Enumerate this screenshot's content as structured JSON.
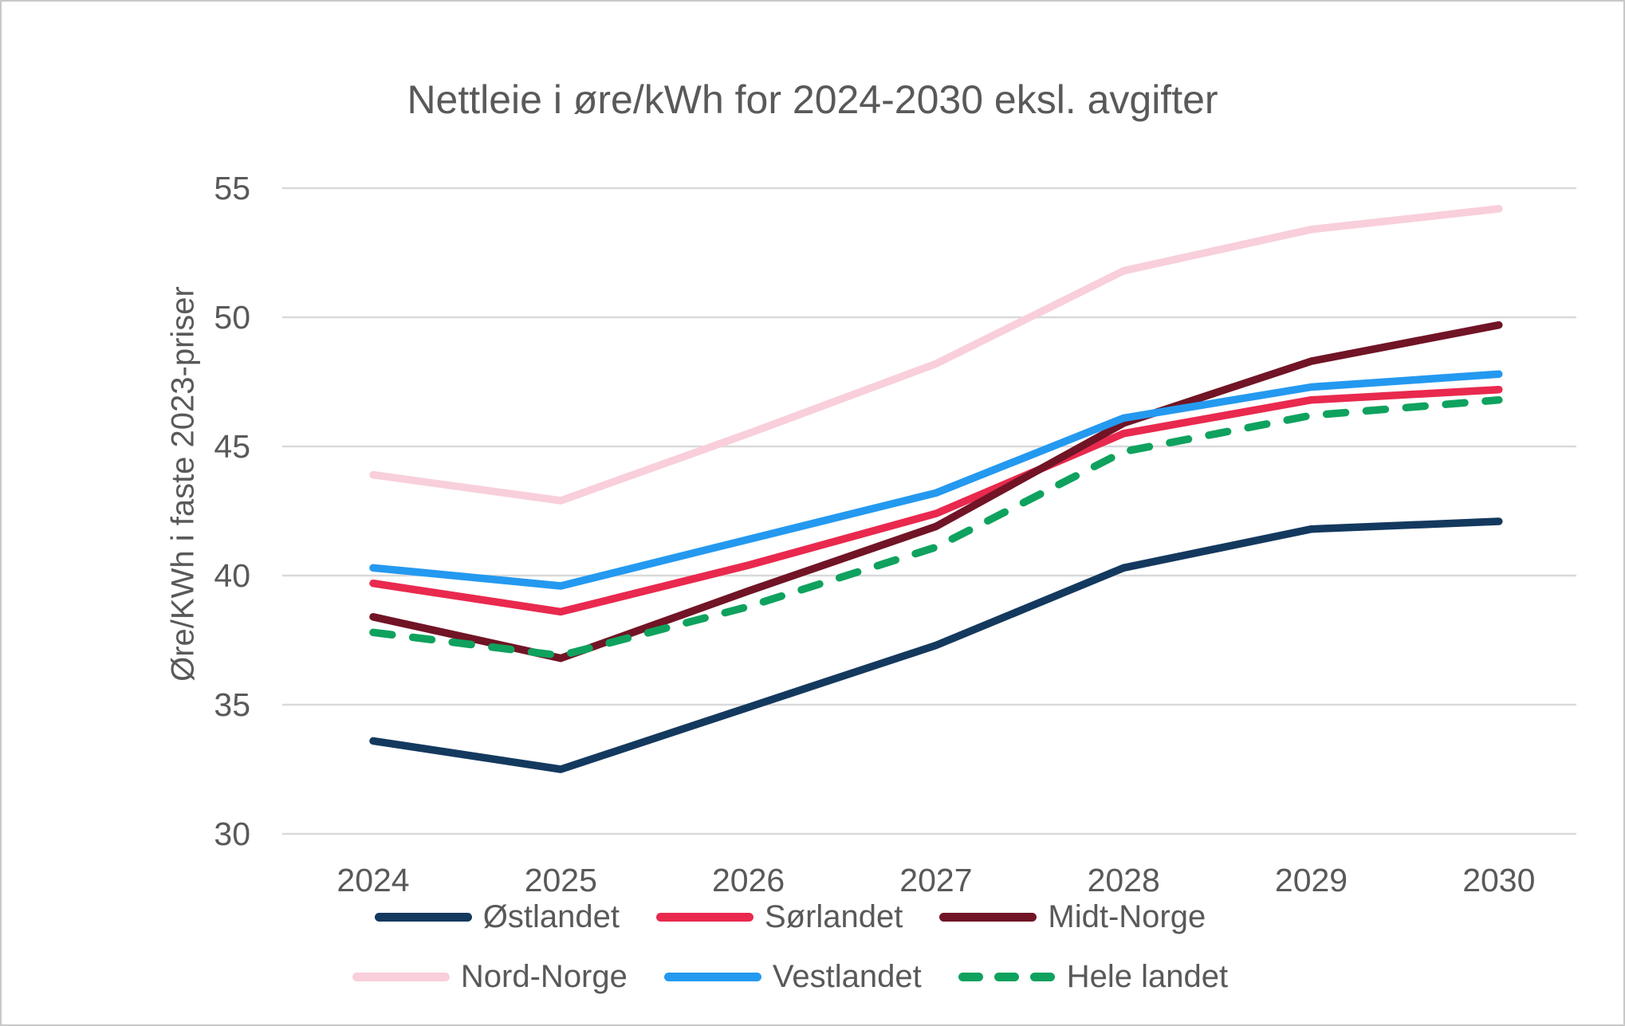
{
  "window": {
    "background": "#FFFFFF",
    "border_color": "#C9C9C9",
    "text_color": "#595959",
    "gridline_color": "#D9D9D9"
  },
  "chart_data": {
    "type": "line",
    "title": "Nettleie i øre/kWh for 2024-2030 eksl. avgifter",
    "xlabel": "",
    "ylabel": "Øre/KWh i faste 2023-priser",
    "categories": [
      "2024",
      "2025",
      "2026",
      "2027",
      "2028",
      "2029",
      "2030"
    ],
    "y_ticks": [
      30,
      35,
      40,
      45,
      50,
      55
    ],
    "ylim": [
      30,
      55
    ],
    "grid": "horizontal",
    "legend_position": "bottom",
    "series": [
      {
        "name": "Østlandet",
        "color": "#14395E",
        "dashed": false,
        "values": [
          33.6,
          32.5,
          34.9,
          37.3,
          40.3,
          41.8,
          42.1
        ]
      },
      {
        "name": "Sørlandet",
        "color": "#E9294E",
        "dashed": false,
        "values": [
          39.7,
          38.6,
          40.4,
          42.4,
          45.5,
          46.8,
          47.2
        ]
      },
      {
        "name": "Midt-Norge",
        "color": "#711426",
        "dashed": false,
        "values": [
          38.4,
          36.8,
          39.4,
          41.9,
          45.9,
          48.3,
          49.7
        ]
      },
      {
        "name": "Nord-Norge",
        "color": "#F8CFDA",
        "dashed": false,
        "values": [
          43.9,
          42.9,
          45.5,
          48.2,
          51.8,
          53.4,
          54.2
        ]
      },
      {
        "name": "Vestlandet",
        "color": "#2499F0",
        "dashed": false,
        "values": [
          40.3,
          39.6,
          41.4,
          43.2,
          46.1,
          47.3,
          47.8
        ]
      },
      {
        "name": "Hele landet",
        "color": "#0FA25E",
        "dashed": true,
        "values": [
          37.8,
          36.9,
          38.8,
          41.1,
          44.8,
          46.2,
          46.8
        ]
      }
    ]
  }
}
